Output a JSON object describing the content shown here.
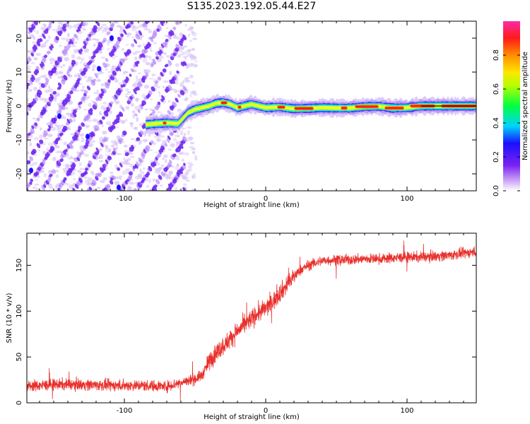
{
  "title": "S135.2023.192.05.44.E27",
  "colors": {
    "signal_line": "#000000",
    "snr_line": "#e8302c",
    "background": "#ffffff"
  },
  "chart_data": [
    {
      "type": "heatmap",
      "xlabel": "Height of straight line (km)",
      "ylabel": "Frequency (Hz)",
      "xlim": [
        -169,
        149
      ],
      "ylim": [
        -25,
        25
      ],
      "xticks": [
        -100,
        0,
        100
      ],
      "yticks": [
        -20,
        -10,
        0,
        10,
        20
      ],
      "grid": false,
      "colorbar": {
        "label": "Normalized spectral amplitude",
        "range": [
          0,
          1
        ],
        "ticks": [
          0.0,
          0.2,
          0.4,
          0.6,
          0.8
        ],
        "colormap": "rainbow (white → violet → blue → cyan → green → yellow → orange → red → magenta)"
      },
      "features": {
        "diagonal_stripes_x_range": [
          -169,
          -57
        ],
        "signal_ridge": {
          "x": [
            -85,
            -78,
            -70,
            -62,
            -55,
            -50,
            -45,
            -40,
            -35,
            -30,
            -25,
            -20,
            -15,
            -10,
            -5,
            0,
            10,
            20,
            30,
            40,
            50,
            60,
            70,
            80,
            90,
            100,
            110,
            120,
            130,
            140,
            149
          ],
          "y": [
            -5.5,
            -5.2,
            -5.0,
            -5.2,
            -2.0,
            -1.0,
            -0.5,
            0.0,
            0.8,
            1.0,
            0.5,
            -0.5,
            0.0,
            0.5,
            0.0,
            -0.5,
            -0.3,
            -0.8,
            -0.7,
            -0.5,
            -0.6,
            -0.6,
            -0.2,
            -0.1,
            -0.6,
            -0.5,
            0.0,
            0.0,
            0.0,
            0.0,
            0.0
          ]
        }
      }
    },
    {
      "type": "line",
      "xlabel": "Height of straight line (km)",
      "ylabel": "SNR (10 * v/v)",
      "xlim": [
        -169,
        149
      ],
      "ylim": [
        0,
        185
      ],
      "xticks": [
        -100,
        0,
        100
      ],
      "yticks": [
        0,
        50,
        100,
        150
      ],
      "grid": false,
      "series": [
        {
          "x": [
            -169,
            -150,
            -130,
            -110,
            -90,
            -70,
            -60,
            -55,
            -50,
            -45,
            -40,
            -35,
            -30,
            -25,
            -20,
            -15,
            -10,
            -5,
            0,
            5,
            10,
            15,
            20,
            25,
            30,
            40,
            50,
            60,
            70,
            80,
            90,
            100,
            110,
            120,
            130,
            140,
            149
          ],
          "values": [
            18,
            20,
            20,
            19,
            19,
            18,
            22,
            24,
            26,
            30,
            45,
            55,
            62,
            70,
            78,
            85,
            92,
            98,
            103,
            110,
            120,
            128,
            138,
            145,
            150,
            155,
            156,
            156,
            157,
            157,
            158,
            159,
            159,
            160,
            161,
            163,
            165
          ]
        }
      ]
    }
  ]
}
